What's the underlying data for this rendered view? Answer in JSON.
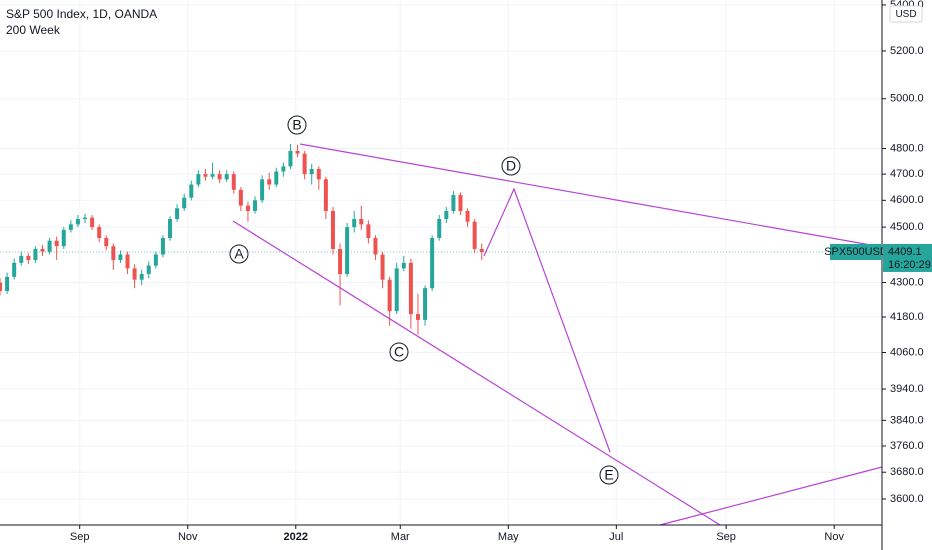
{
  "chart_data": {
    "type": "candlestick",
    "title": "S&P 500 Index, 1D, OANDA",
    "subtitle": "200 Week",
    "currency": "USD",
    "x": [
      -45,
      -41,
      -37,
      -33,
      -29,
      -25,
      -21,
      -17,
      -13,
      -9,
      -5,
      -1,
      3,
      7,
      11,
      15,
      19,
      23,
      27,
      31,
      35,
      39,
      43,
      47,
      51,
      55,
      59,
      63,
      67,
      71,
      75,
      79,
      83,
      87,
      91,
      95,
      99,
      103,
      107,
      111,
      115,
      119,
      123,
      127,
      131,
      135,
      139,
      143,
      147,
      151,
      155,
      159,
      163,
      167,
      171,
      175,
      179,
      183,
      187,
      191,
      195,
      199,
      203,
      207,
      211,
      215,
      219,
      223,
      227
    ],
    "open": [
      4300,
      4270,
      4320,
      4370,
      4395,
      4380,
      4420,
      4410,
      4450,
      4430,
      4490,
      4510,
      4530,
      4535,
      4500,
      4460,
      4430,
      4380,
      4400,
      4350,
      4310,
      4330,
      4360,
      4400,
      4460,
      4530,
      4570,
      4610,
      4660,
      4700,
      4690,
      4700,
      4680,
      4700,
      4640,
      4580,
      4560,
      4600,
      4680,
      4660,
      4710,
      4730,
      4790,
      4780,
      4700,
      4720,
      4680,
      4560,
      4420,
      4330,
      4500,
      4530,
      4510,
      4460,
      4400,
      4310,
      4200,
      4350,
      4370,
      4190,
      4170,
      4280,
      4460,
      4530,
      4560,
      4620,
      4560,
      4520,
      4420
    ],
    "high": [
      4315,
      4335,
      4385,
      4410,
      4405,
      4430,
      4435,
      4460,
      4465,
      4500,
      4525,
      4545,
      4550,
      4545,
      4510,
      4470,
      4440,
      4415,
      4410,
      4365,
      4345,
      4375,
      4410,
      4470,
      4540,
      4585,
      4625,
      4675,
      4715,
      4720,
      4745,
      4715,
      4715,
      4710,
      4650,
      4595,
      4615,
      4695,
      4705,
      4725,
      4745,
      4818,
      4815,
      4790,
      4740,
      4730,
      4690,
      4575,
      4440,
      4515,
      4560,
      4580,
      4525,
      4470,
      4410,
      4320,
      4370,
      4395,
      4385,
      4260,
      4290,
      4470,
      4545,
      4575,
      4635,
      4630,
      4570,
      4530,
      4440
    ],
    "low": [
      4255,
      4260,
      4310,
      4360,
      4365,
      4370,
      4395,
      4400,
      4380,
      4420,
      4480,
      4500,
      4515,
      4490,
      4445,
      4415,
      4345,
      4370,
      4330,
      4280,
      4290,
      4315,
      4350,
      4390,
      4450,
      4520,
      4560,
      4600,
      4650,
      4675,
      4680,
      4665,
      4670,
      4625,
      4560,
      4520,
      4550,
      4590,
      4640,
      4650,
      4690,
      4720,
      4765,
      4680,
      4660,
      4640,
      4530,
      4400,
      4220,
      4320,
      4480,
      4490,
      4440,
      4380,
      4280,
      4150,
      4190,
      4340,
      4140,
      4120,
      4150,
      4270,
      4450,
      4515,
      4550,
      4545,
      4500,
      4405,
      4380
    ],
    "close": [
      4270,
      4320,
      4370,
      4395,
      4380,
      4420,
      4410,
      4450,
      4430,
      4490,
      4510,
      4530,
      4535,
      4500,
      4460,
      4430,
      4380,
      4400,
      4350,
      4310,
      4330,
      4360,
      4400,
      4460,
      4530,
      4570,
      4610,
      4660,
      4700,
      4690,
      4700,
      4680,
      4700,
      4640,
      4580,
      4560,
      4600,
      4680,
      4660,
      4710,
      4730,
      4790,
      4780,
      4700,
      4720,
      4680,
      4560,
      4420,
      4330,
      4500,
      4530,
      4510,
      4460,
      4400,
      4310,
      4200,
      4350,
      4370,
      4190,
      4170,
      4280,
      4460,
      4530,
      4560,
      4620,
      4560,
      4520,
      4420,
      4409.1
    ],
    "up_color": "#26a69a",
    "down_color": "#ef5350",
    "xlim": [
      -45,
      453
    ],
    "xticks": [
      {
        "value": 0,
        "label": "Sep"
      },
      {
        "value": 61,
        "label": "Nov"
      },
      {
        "value": 122,
        "label": "2022"
      },
      {
        "value": 181,
        "label": "Mar"
      },
      {
        "value": 242,
        "label": "May"
      },
      {
        "value": 303,
        "label": "Jul"
      },
      {
        "value": 365,
        "label": "Sep"
      },
      {
        "value": 426,
        "label": "Nov"
      }
    ],
    "ylim": [
      3524,
      5422
    ],
    "log_scale": true,
    "grid": true,
    "yticks": [
      {
        "value": 5400,
        "label": "5400.0"
      },
      {
        "value": 5200,
        "label": "5200.0"
      },
      {
        "value": 5000,
        "label": "5000.0"
      },
      {
        "value": 4800,
        "label": "4800.0"
      },
      {
        "value": 4700,
        "label": "4700.0"
      },
      {
        "value": 4600,
        "label": "4600.0"
      },
      {
        "value": 4500,
        "label": "4500.0"
      },
      {
        "value": 4300,
        "label": "4300.0"
      },
      {
        "value": 4180,
        "label": "4180.0"
      },
      {
        "value": 4060,
        "label": "4060.0"
      },
      {
        "value": 3940,
        "label": "3940.0"
      },
      {
        "value": 3840,
        "label": "3840.0"
      },
      {
        "value": 3760,
        "label": "3760.0"
      },
      {
        "value": 3680,
        "label": "3680.0"
      },
      {
        "value": 3600,
        "label": "3600.0"
      }
    ],
    "last_price": {
      "symbol": "SPX500USD",
      "value": 4409.1,
      "countdown": "16:20:29"
    },
    "annotations": [
      "A",
      "B",
      "C",
      "D",
      "E"
    ]
  }
}
